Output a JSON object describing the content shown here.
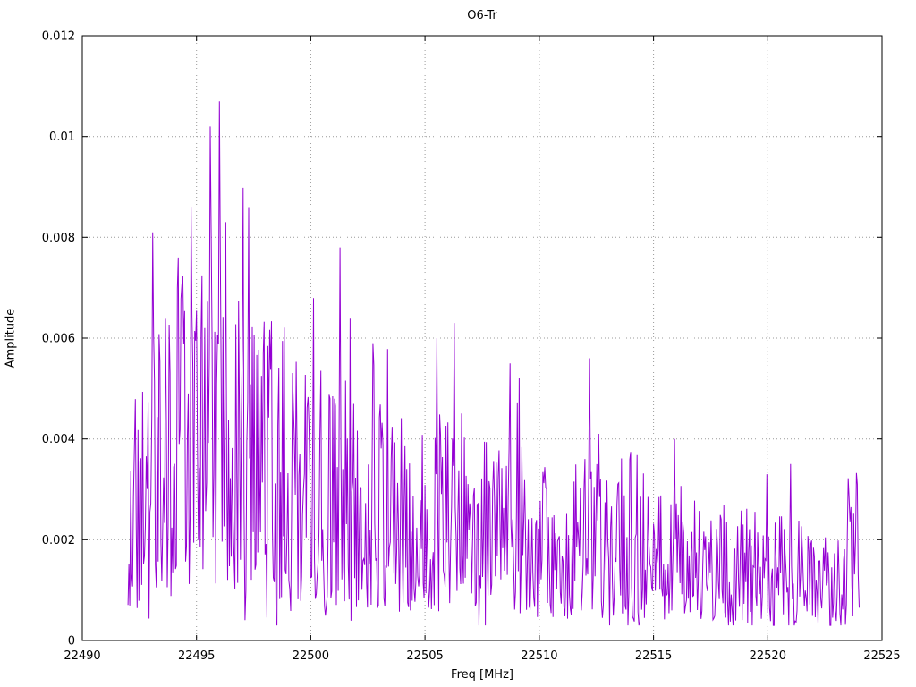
{
  "chart_data": {
    "type": "line",
    "title": "O6-Tr",
    "xlabel": "Freq [MHz]",
    "ylabel": "Amplitude",
    "xlim": [
      22490,
      22525
    ],
    "ylim": [
      0,
      0.012
    ],
    "xticks": [
      22490,
      22495,
      22500,
      22505,
      22510,
      22515,
      22520,
      22525
    ],
    "xtick_labels": [
      "22490",
      "22495",
      "22500",
      "22505",
      "22510",
      "22515",
      "22520",
      "22525"
    ],
    "yticks": [
      0,
      0.002,
      0.004,
      0.006,
      0.008,
      0.01,
      0.012
    ],
    "ytick_labels": [
      "0",
      "0.002",
      "0.004",
      "0.006",
      "0.008",
      "0.01",
      "0.012"
    ],
    "grid": true,
    "grid_style": "dotted",
    "legend": "none",
    "background_color": "#ffffff",
    "axis_color": "#000000",
    "grid_color": "#999999",
    "series": [
      {
        "name": "O6-Tr",
        "color": "#9400D3",
        "x_start": 22492.0,
        "x_end": 22524.0,
        "x_step": 0.04,
        "noise_seed": 20495,
        "noise_floor": 0.0003,
        "max_clip": 0.0095,
        "envelope_mean": [
          [
            22492.0,
            0.0026
          ],
          [
            22493.0,
            0.0033
          ],
          [
            22494.0,
            0.0039
          ],
          [
            22495.0,
            0.0045
          ],
          [
            22496.0,
            0.0047
          ],
          [
            22497.0,
            0.0041
          ],
          [
            22498.0,
            0.0037
          ],
          [
            22499.0,
            0.0033
          ],
          [
            22500.0,
            0.0031
          ],
          [
            22501.0,
            0.003
          ],
          [
            22502.0,
            0.0029
          ],
          [
            22503.0,
            0.0027
          ],
          [
            22504.0,
            0.0025
          ],
          [
            22505.0,
            0.0024
          ],
          [
            22506.0,
            0.0027
          ],
          [
            22507.0,
            0.0025
          ],
          [
            22508.0,
            0.0024
          ],
          [
            22509.0,
            0.0024
          ],
          [
            22510.0,
            0.0021
          ],
          [
            22511.0,
            0.0019
          ],
          [
            22512.0,
            0.0021
          ],
          [
            22513.0,
            0.0019
          ],
          [
            22514.0,
            0.0017
          ],
          [
            22515.0,
            0.0016
          ],
          [
            22516.0,
            0.0018
          ],
          [
            22517.0,
            0.0016
          ],
          [
            22518.0,
            0.0016
          ],
          [
            22519.0,
            0.0015
          ],
          [
            22520.0,
            0.0015
          ],
          [
            22521.0,
            0.0016
          ],
          [
            22522.0,
            0.0015
          ],
          [
            22523.0,
            0.0011
          ],
          [
            22524.0,
            0.0018
          ]
        ],
        "peaks": [
          {
            "x": 22493.1,
            "y": 0.0081
          },
          {
            "x": 22494.2,
            "y": 0.0076
          },
          {
            "x": 22495.6,
            "y": 0.0102
          },
          {
            "x": 22496.0,
            "y": 0.0107
          },
          {
            "x": 22496.3,
            "y": 0.0083
          },
          {
            "x": 22497.3,
            "y": 0.0086
          },
          {
            "x": 22497.9,
            "y": 0.0057
          },
          {
            "x": 22501.3,
            "y": 0.0078
          },
          {
            "x": 22502.7,
            "y": 0.0059
          },
          {
            "x": 22505.5,
            "y": 0.006
          },
          {
            "x": 22506.3,
            "y": 0.0063
          },
          {
            "x": 22508.7,
            "y": 0.0055
          },
          {
            "x": 22512.2,
            "y": 0.0056
          },
          {
            "x": 22512.6,
            "y": 0.0041
          },
          {
            "x": 22515.9,
            "y": 0.004
          },
          {
            "x": 22521.0,
            "y": 0.0035
          },
          {
            "x": 22523.9,
            "y": 0.0031
          }
        ]
      }
    ]
  }
}
